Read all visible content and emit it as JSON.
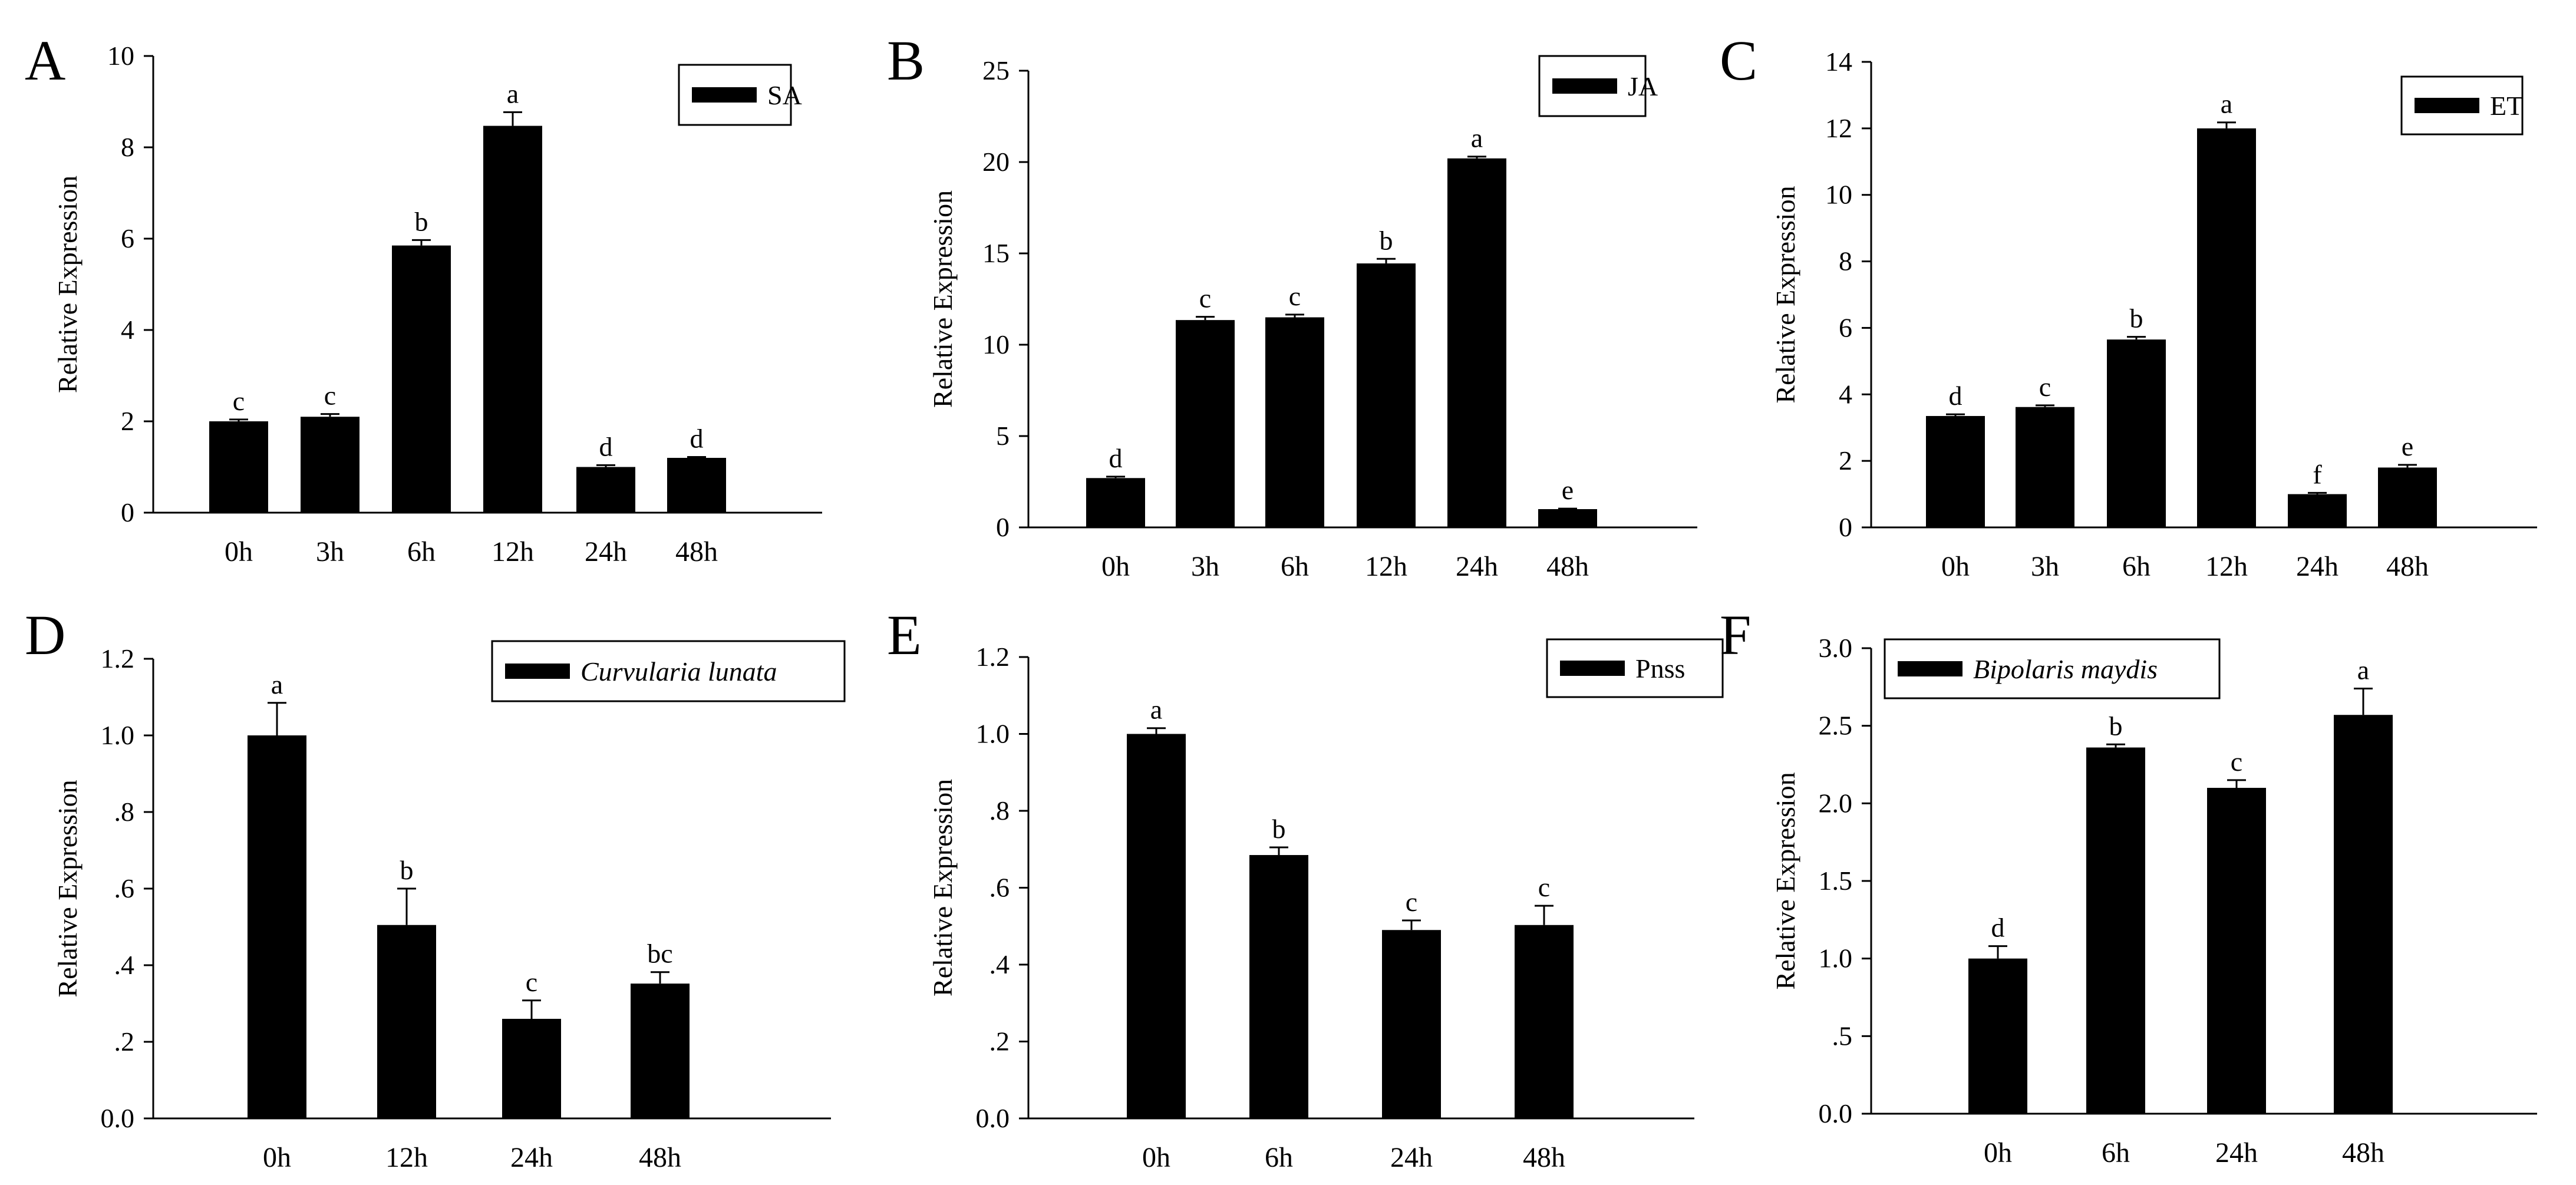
{
  "figure": {
    "ylabel": "Relative Expression"
  },
  "chart_data": [
    {
      "panel": "A",
      "type": "bar",
      "title": "",
      "xlabel": "",
      "ylabel": "Relative Expression",
      "legend": {
        "label": "SA",
        "italic": false,
        "placement": "top-right"
      },
      "categories": [
        "0h",
        "3h",
        "6h",
        "12h",
        "24h",
        "48h"
      ],
      "values": [
        2.0,
        2.1,
        5.85,
        8.47,
        1.0,
        1.2
      ],
      "errors": [
        0.04,
        0.06,
        0.12,
        0.3,
        0.04,
        0.02
      ],
      "letters": [
        "c",
        "c",
        "b",
        "a",
        "d",
        "d"
      ],
      "ylim": [
        0,
        10
      ],
      "yticks": [
        0,
        2,
        4,
        6,
        8,
        10
      ],
      "ytick_labels": [
        "0",
        "2",
        "4",
        "6",
        "8",
        "10"
      ]
    },
    {
      "panel": "B",
      "type": "bar",
      "title": "",
      "xlabel": "",
      "ylabel": "Relative Expression",
      "legend": {
        "label": "JA",
        "italic": false,
        "placement": "top-right"
      },
      "categories": [
        "0h",
        "3h",
        "6h",
        "12h",
        "24h",
        "48h"
      ],
      "values": [
        2.7,
        11.35,
        11.5,
        14.45,
        20.2,
        1.0
      ],
      "errors": [
        0.08,
        0.18,
        0.15,
        0.25,
        0.1,
        0.03
      ],
      "letters": [
        "d",
        "c",
        "c",
        "b",
        "a",
        "e"
      ],
      "ylim": [
        0,
        25
      ],
      "yticks": [
        0,
        5,
        10,
        15,
        20,
        25
      ],
      "ytick_labels": [
        "0",
        "5",
        "10",
        "15",
        "20",
        "25"
      ]
    },
    {
      "panel": "C",
      "type": "bar",
      "title": "",
      "xlabel": "",
      "ylabel": "Relative Expression",
      "legend": {
        "label": "ET",
        "italic": false,
        "placement": "top-right"
      },
      "categories": [
        "0h",
        "3h",
        "6h",
        "12h",
        "24h",
        "48h"
      ],
      "values": [
        3.35,
        3.62,
        5.65,
        12.0,
        1.0,
        1.8
      ],
      "errors": [
        0.05,
        0.05,
        0.08,
        0.18,
        0.04,
        0.08
      ],
      "letters": [
        "d",
        "c",
        "b",
        "a",
        "f",
        "e"
      ],
      "ylim": [
        0,
        14
      ],
      "yticks": [
        0,
        2,
        4,
        6,
        8,
        10,
        12,
        14
      ],
      "ytick_labels": [
        "0",
        "2",
        "4",
        "6",
        "8",
        "10",
        "12",
        "14"
      ]
    },
    {
      "panel": "D",
      "type": "bar",
      "title": "",
      "xlabel": "",
      "ylabel": "Relative Expression",
      "legend": {
        "label": "Curvularia lunata",
        "italic": true,
        "placement": "top-right"
      },
      "categories": [
        "0h",
        "12h",
        "24h",
        "48h"
      ],
      "values": [
        1.0,
        0.505,
        0.26,
        0.352
      ],
      "errors": [
        0.085,
        0.095,
        0.048,
        0.03
      ],
      "letters": [
        "a",
        "b",
        "c",
        "bc"
      ],
      "ylim": [
        0,
        1.2
      ],
      "yticks": [
        0,
        0.2,
        0.4,
        0.6,
        0.8,
        1.0,
        1.2
      ],
      "ytick_labels": [
        "0.0",
        ".2",
        ".4",
        ".6",
        ".8",
        "1.0",
        "1.2"
      ]
    },
    {
      "panel": "E",
      "type": "bar",
      "title": "",
      "xlabel": "",
      "ylabel": "Relative Expression",
      "legend": {
        "label": "Pnss",
        "italic": false,
        "placement": "top-right"
      },
      "categories": [
        "0h",
        "6h",
        "24h",
        "48h"
      ],
      "values": [
        1.0,
        0.685,
        0.49,
        0.503
      ],
      "errors": [
        0.015,
        0.02,
        0.025,
        0.05
      ],
      "letters": [
        "a",
        "b",
        "c",
        "c"
      ],
      "ylim": [
        0,
        1.2
      ],
      "yticks": [
        0,
        0.2,
        0.4,
        0.6,
        0.8,
        1.0,
        1.2
      ],
      "ytick_labels": [
        "0.0",
        ".2",
        ".4",
        ".6",
        ".8",
        "1.0",
        "1.2"
      ]
    },
    {
      "panel": "F",
      "type": "bar",
      "title": "",
      "xlabel": "",
      "ylabel": "Relative Expression",
      "legend": {
        "label": "Bipolaris maydis",
        "italic": true,
        "placement": "top-left"
      },
      "categories": [
        "0h",
        "6h",
        "24h",
        "48h"
      ],
      "values": [
        1.0,
        2.36,
        2.1,
        2.57
      ],
      "errors": [
        0.08,
        0.02,
        0.05,
        0.17
      ],
      "letters": [
        "d",
        "b",
        "c",
        "a"
      ],
      "ylim": [
        0,
        3.0
      ],
      "yticks": [
        0,
        0.5,
        1.0,
        1.5,
        2.0,
        2.5,
        3.0
      ],
      "ytick_labels": [
        "0.0",
        ".5",
        "1.0",
        "1.5",
        "2.0",
        "2.5",
        "3.0"
      ]
    }
  ]
}
